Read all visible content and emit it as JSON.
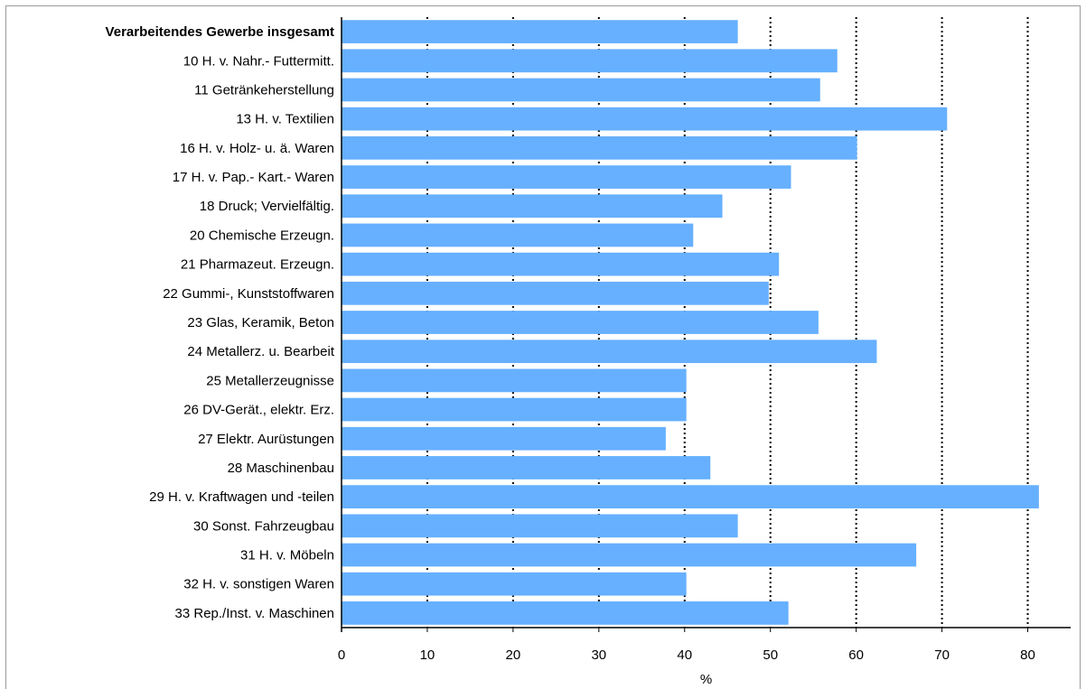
{
  "chart_data": {
    "type": "bar",
    "orientation": "horizontal",
    "categories": [
      "Verarbeitendes Gewerbe insgesamt",
      "10  H. v. Nahr.- Futtermitt.",
      "11  Getränkeherstellung",
      "13  H. v. Textilien",
      "16  H. v. Holz- u. ä. Waren",
      "17  H. v. Pap.- Kart.- Waren",
      "18  Druck; Vervielfältig.",
      "20  Chemische Erzeugn.",
      "21  Pharmazeut. Erzeugn.",
      "22  Gummi-, Kunststoffwaren",
      "23  Glas, Keramik, Beton",
      "24  Metallerz. u. Bearbeit",
      "25  Metallerzeugnisse",
      "26  DV-Gerät., elektr. Erz.",
      "27  Elektr. Aurüstungen",
      "28  Maschinenbau",
      "29  H. v. Kraftwagen und -teilen",
      "30  Sonst. Fahrzeugbau",
      "31  H. v. Möbeln",
      "32  H. v. sonstigen Waren",
      "33  Rep./Inst. v. Maschinen"
    ],
    "values": [
      46.2,
      57.8,
      55.8,
      70.6,
      60.1,
      52.4,
      44.4,
      41.0,
      51.0,
      49.8,
      55.6,
      62.4,
      40.2,
      40.2,
      37.8,
      43.0,
      81.3,
      46.2,
      67.0,
      40.2,
      52.1
    ],
    "bold_categories": [
      "Verarbeitendes Gewerbe insgesamt"
    ],
    "xlabel": "%",
    "xlim": [
      0,
      85
    ],
    "xticks": [
      0,
      10,
      20,
      30,
      40,
      50,
      60,
      70,
      80
    ],
    "gridlines": "vertical-dotted",
    "bar_color": "#66b0ff"
  }
}
